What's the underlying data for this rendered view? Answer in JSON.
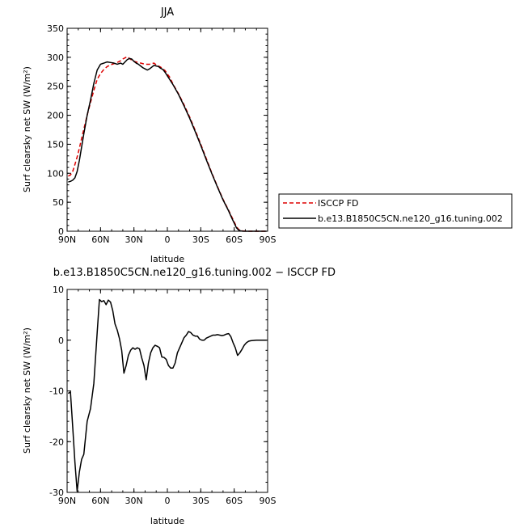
{
  "chart_data": [
    {
      "type": "line",
      "title": "JJA",
      "xlabel": "latitude",
      "ylabel": "Surf clearsky net SW (W/m²)",
      "xlim": [
        90,
        -90
      ],
      "ylim": [
        0,
        350
      ],
      "x_tick_labels": [
        "90N",
        "60N",
        "30N",
        "0",
        "30S",
        "60S",
        "90S"
      ],
      "x_tick_values": [
        90,
        60,
        30,
        0,
        -30,
        -60,
        -90
      ],
      "y_tick_values": [
        0,
        50,
        100,
        150,
        200,
        250,
        300,
        350
      ],
      "legend": {
        "placement": "outside-right"
      },
      "series": [
        {
          "name": "ISCCP FD",
          "color": "#dd0000",
          "dash": "dashed",
          "x": [
            89,
            87,
            85,
            83,
            81,
            79,
            77,
            75,
            72,
            69,
            66,
            63,
            60,
            57,
            54,
            51,
            48,
            45,
            42,
            40,
            38,
            36,
            34,
            32,
            30,
            28,
            26,
            24,
            22,
            20,
            18,
            16,
            14,
            12,
            10,
            8,
            6,
            4,
            2,
            0,
            -2,
            -5,
            -10,
            -15,
            -20,
            -25,
            -30,
            -35,
            -40,
            -45,
            -50,
            -55,
            -58,
            -60,
            -62,
            -64,
            -66,
            -68,
            -70,
            -75,
            -80,
            -85,
            -89
          ],
          "values": [
            95,
            97,
            103,
            115,
            128,
            143,
            160,
            176,
            200,
            222,
            243,
            262,
            272,
            279,
            284,
            287,
            289,
            291,
            294,
            297,
            299,
            301,
            298,
            295,
            293,
            292,
            291,
            290,
            289,
            288,
            288,
            288,
            289,
            290,
            287,
            285,
            283,
            280,
            277,
            271,
            266,
            254,
            237,
            218,
            197,
            174,
            150,
            125,
            100,
            77,
            55,
            36,
            24,
            16,
            8,
            3,
            1,
            0.5,
            0.2,
            0,
            0,
            0,
            0
          ]
        },
        {
          "name": "b.e13.B1850C5CN.ne120_g16.tuning.002",
          "color": "#000000",
          "dash": "solid",
          "x": [
            89,
            87,
            85,
            83,
            81,
            79,
            77,
            75,
            72,
            69,
            66,
            63,
            60,
            57,
            54,
            51,
            48,
            45,
            42,
            40,
            38,
            36,
            34,
            32,
            30,
            28,
            26,
            24,
            22,
            20,
            18,
            16,
            14,
            12,
            10,
            8,
            6,
            4,
            2,
            0,
            -2,
            -5,
            -10,
            -15,
            -20,
            -25,
            -30,
            -35,
            -40,
            -45,
            -50,
            -55,
            -58,
            -60,
            -62,
            -64,
            -66,
            -68,
            -70,
            -75,
            -80,
            -85,
            -89
          ],
          "values": [
            85,
            86,
            88,
            92,
            103,
            122,
            145,
            168,
            200,
            226,
            255,
            278,
            288,
            290,
            292,
            291,
            290,
            288,
            290,
            288,
            292,
            296,
            298,
            297,
            293,
            290,
            288,
            285,
            282,
            280,
            278,
            280,
            283,
            286,
            285,
            284,
            281,
            279,
            274,
            268,
            262,
            253,
            236,
            216,
            195,
            172,
            148,
            123,
            99,
            76,
            54,
            35,
            22,
            14,
            6,
            2,
            0.5,
            0,
            0,
            0,
            0,
            0,
            0
          ]
        }
      ]
    },
    {
      "type": "line",
      "title": "b.e13.B1850C5CN.ne120_g16.tuning.002 − ISCCP FD",
      "xlabel": "latitude",
      "ylabel": "Surf clearsky net SW (W/m²)",
      "xlim": [
        90,
        -90
      ],
      "ylim": [
        -30,
        10
      ],
      "x_tick_labels": [
        "90N",
        "60N",
        "30N",
        "0",
        "30S",
        "60S",
        "90S"
      ],
      "x_tick_values": [
        90,
        60,
        30,
        0,
        -30,
        -60,
        -90
      ],
      "y_tick_values": [
        -30,
        -20,
        -10,
        0,
        10
      ],
      "series": [
        {
          "color": "#000000",
          "dash": "solid",
          "x": [
            89,
            87,
            85,
            83,
            81,
            79,
            77,
            75,
            72,
            69,
            66,
            63,
            61,
            59,
            57,
            55,
            53,
            51,
            49,
            47,
            45,
            43,
            41,
            39,
            37,
            35,
            33,
            31,
            29,
            27,
            25,
            23,
            21,
            19,
            17,
            15,
            13,
            11,
            9,
            7,
            5,
            3,
            1,
            -1,
            -3,
            -5,
            -7,
            -9,
            -11,
            -13,
            -15,
            -17,
            -19,
            -21,
            -23,
            -25,
            -27,
            -29,
            -31,
            -33,
            -35,
            -37,
            -39,
            -41,
            -43,
            -45,
            -47,
            -49,
            -51,
            -53,
            -55,
            -57,
            -59,
            -61,
            -63,
            -65,
            -67,
            -69,
            -71,
            -73,
            -75,
            -80,
            -85,
            -89
          ],
          "values": [
            -10.5,
            -10.2,
            -17,
            -24,
            -29.8,
            -26,
            -23.5,
            -22.5,
            -16,
            -13.5,
            -8.5,
            1.5,
            8.0,
            7.6,
            7.8,
            7.0,
            7.9,
            7.5,
            5.8,
            3.2,
            2.0,
            0.3,
            -2.0,
            -6.5,
            -5.0,
            -3.0,
            -2.0,
            -1.5,
            -1.8,
            -1.5,
            -1.7,
            -3.5,
            -5.0,
            -7.8,
            -4.5,
            -2.5,
            -1.5,
            -1.0,
            -1.2,
            -1.5,
            -3.3,
            -3.4,
            -3.8,
            -5.0,
            -5.5,
            -5.5,
            -4.5,
            -2.5,
            -1.5,
            -0.5,
            0.5,
            1.0,
            1.7,
            1.5,
            1.0,
            0.8,
            0.8,
            0.2,
            0.0,
            0.0,
            0.4,
            0.6,
            0.8,
            1.0,
            1.0,
            1.1,
            1.0,
            0.9,
            1.0,
            1.2,
            1.3,
            0.7,
            -0.5,
            -1.5,
            -3.0,
            -2.5,
            -1.8,
            -1.0,
            -0.5,
            -0.2,
            -0.1,
            0,
            0,
            0
          ]
        }
      ]
    }
  ]
}
